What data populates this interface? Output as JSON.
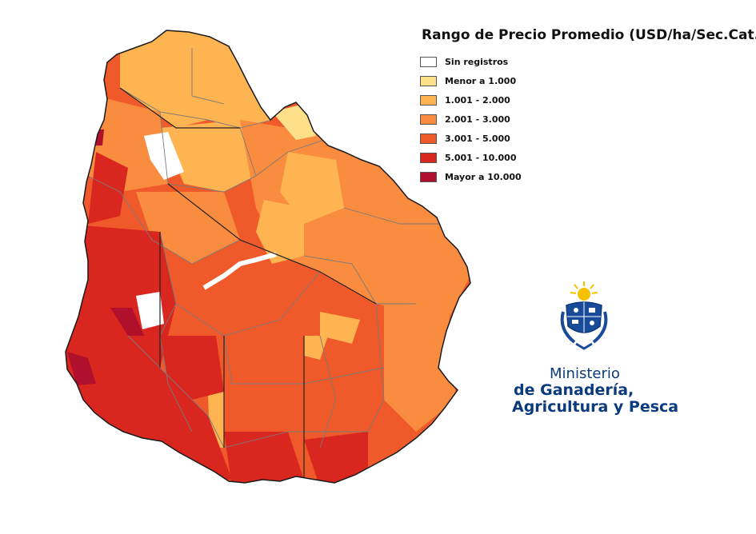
{
  "legend": {
    "title": "Rango de Precio Promedio (USD/ha/Sec.Cat.)",
    "items": [
      {
        "label": "Sin registros",
        "color": "#ffffff"
      },
      {
        "label": "Menor a 1.000",
        "color": "#fee08b"
      },
      {
        "label": "1.001 - 2.000",
        "color": "#fdb451"
      },
      {
        "label": "2.001 - 3.000",
        "color": "#f98c3f"
      },
      {
        "label": "3.001 - 5.000",
        "color": "#f05a2a"
      },
      {
        "label": "5.001 - 10.000",
        "color": "#d9261f"
      },
      {
        "label": "Mayor a 10.000",
        "color": "#b0102c"
      }
    ]
  },
  "ministry": {
    "line1": "Ministerio",
    "line2": "de Ganadería,",
    "line3": "Agricultura y Pesca",
    "color": "#0b3a7d"
  },
  "map": {
    "region": "Uruguay",
    "border_color": "#7a7a7a",
    "outline_color": "#1a1a1a"
  }
}
